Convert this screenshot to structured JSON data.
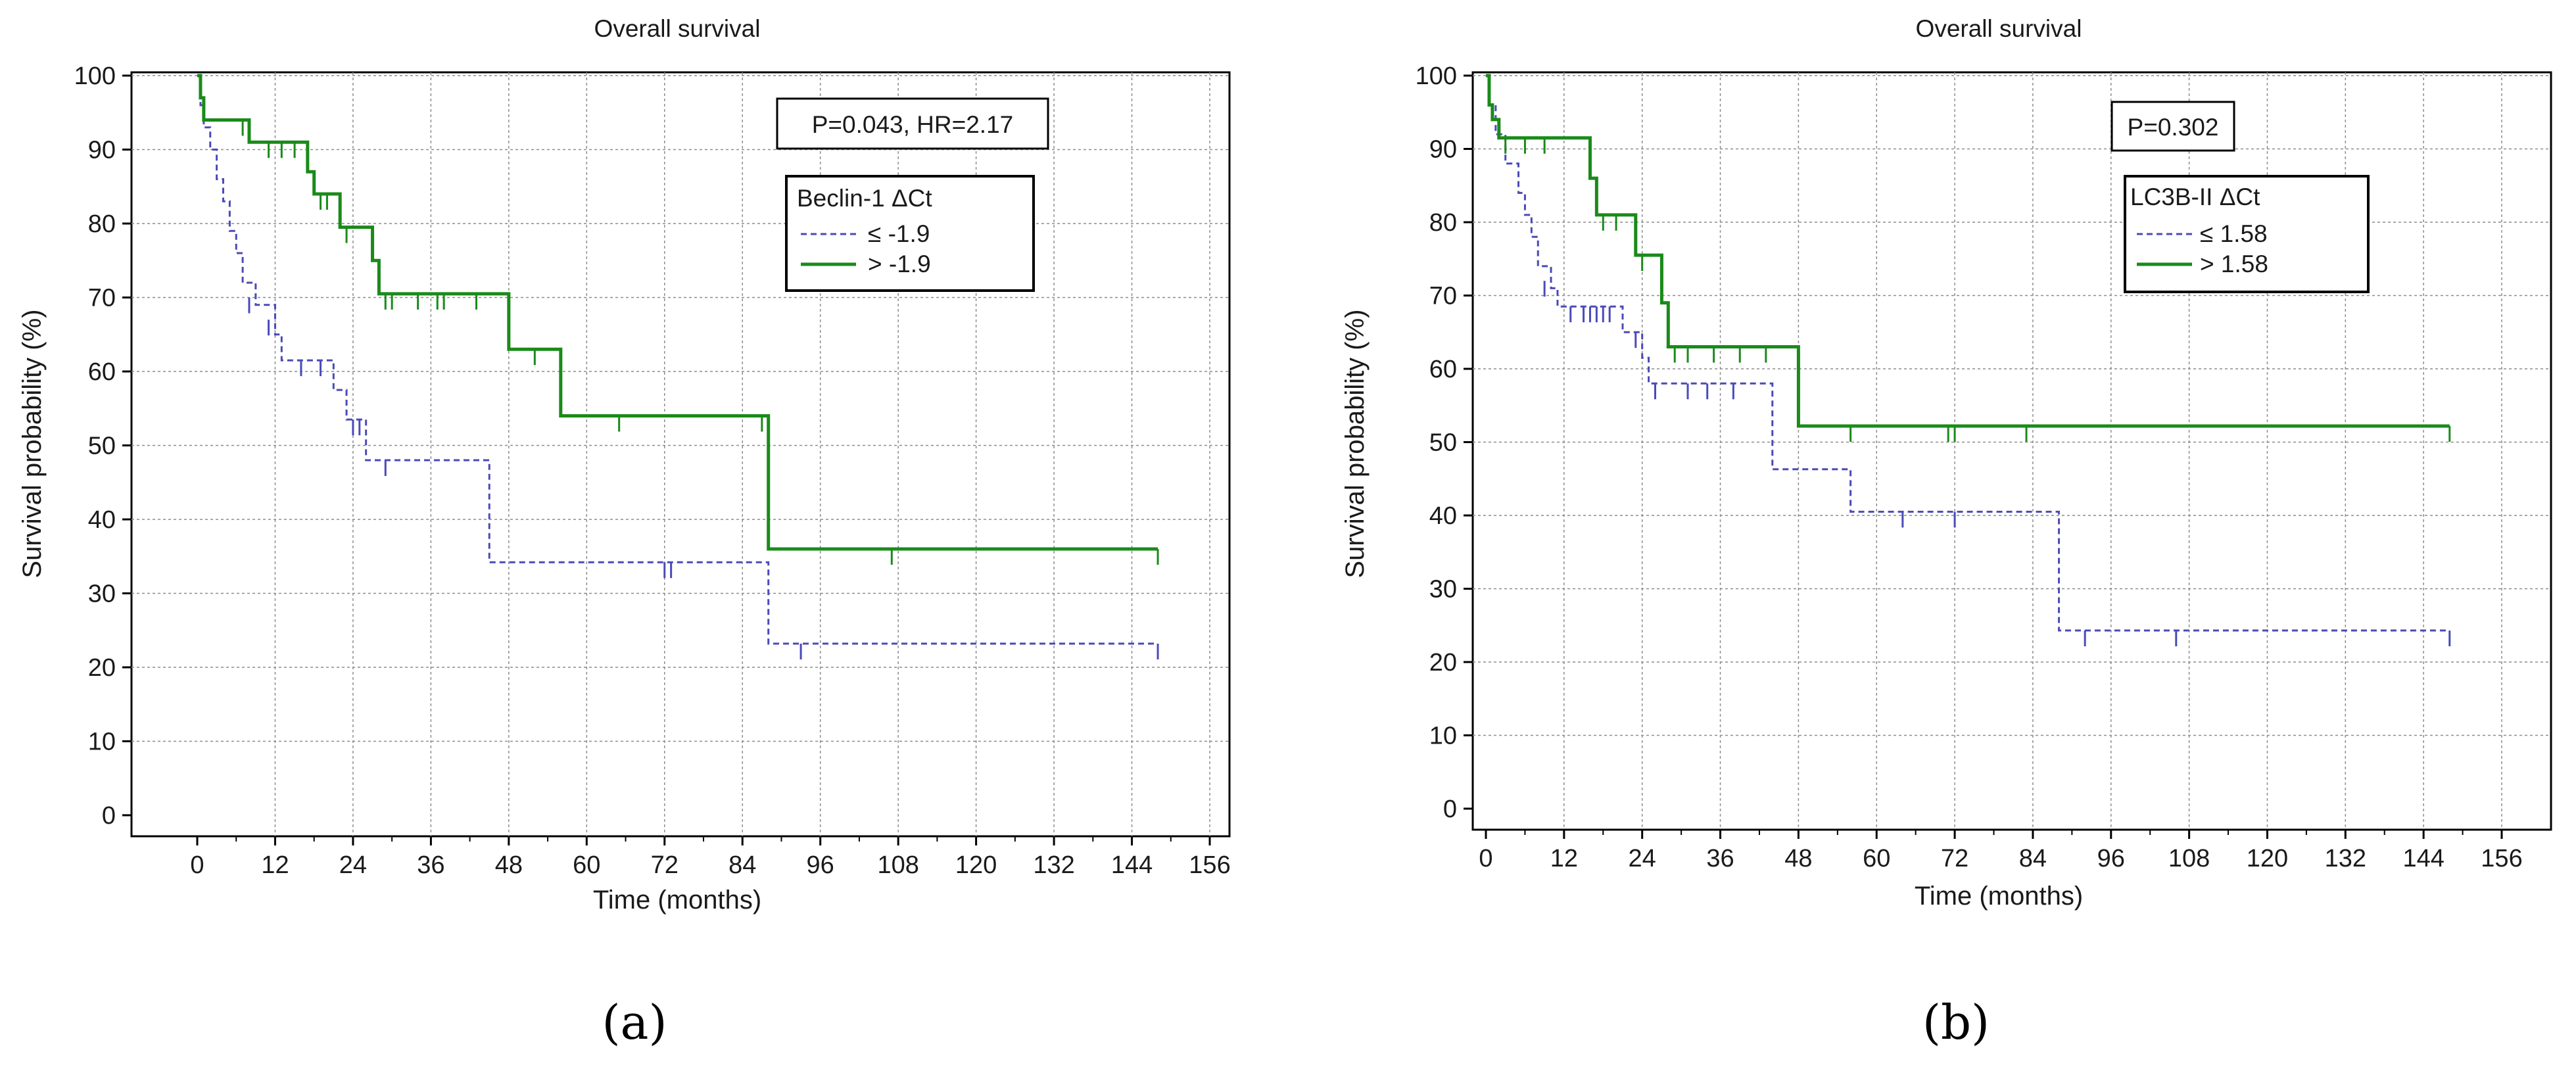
{
  "colors": {
    "low": "#4a4ab8",
    "high": "#1a8a1a",
    "grid": "#8c8c8c",
    "axis": "#000000"
  },
  "chart_data": [
    {
      "type": "line",
      "panel_label": "(a)",
      "title": "Overall survival",
      "xlabel": "Time (months)",
      "ylabel": "Survival probability (%)",
      "xlim": [
        0,
        156
      ],
      "ylim": [
        0,
        100
      ],
      "xticks": [
        "0",
        "12",
        "24",
        "36",
        "48",
        "60",
        "72",
        "84",
        "96",
        "108",
        "120",
        "132",
        "144",
        "156"
      ],
      "yticks": [
        "0",
        "10",
        "20",
        "30",
        "40",
        "50",
        "60",
        "70",
        "80",
        "90",
        "100"
      ],
      "stat_text": "P=0.043, HR=2.17",
      "legend_title": "Beclin-1 ΔCt",
      "grid": true,
      "series": [
        {
          "name": "≤ -1.9",
          "style": "dashed",
          "points": [
            [
              0,
              100
            ],
            [
              0.5,
              96
            ],
            [
              1,
              93
            ],
            [
              2,
              90
            ],
            [
              3,
              86
            ],
            [
              4,
              83
            ],
            [
              5,
              79
            ],
            [
              6,
              76
            ],
            [
              7,
              72
            ],
            [
              9,
              69
            ],
            [
              12,
              65
            ],
            [
              13,
              61.5
            ],
            [
              21,
              57.5
            ],
            [
              23,
              53.5
            ],
            [
              26,
              48
            ],
            [
              45,
              34.2
            ],
            [
              88,
              23.2
            ],
            [
              148,
              23.2
            ]
          ],
          "censored": [
            [
              8,
              70
            ],
            [
              11,
              67
            ],
            [
              16,
              61.5
            ],
            [
              19,
              61.5
            ],
            [
              24,
              53.5
            ],
            [
              25,
              53.5
            ],
            [
              29,
              48
            ],
            [
              72,
              34.2
            ],
            [
              73,
              34.2
            ],
            [
              93,
              23.2
            ],
            [
              148,
              23.2
            ]
          ]
        },
        {
          "name": "> -1.9",
          "style": "solid",
          "points": [
            [
              0,
              100
            ],
            [
              0.5,
              97
            ],
            [
              1,
              94
            ],
            [
              8,
              91
            ],
            [
              17,
              87
            ],
            [
              18,
              84
            ],
            [
              22,
              79.5
            ],
            [
              27,
              75
            ],
            [
              28,
              70.5
            ],
            [
              48,
              63
            ],
            [
              56,
              54
            ],
            [
              88,
              36
            ],
            [
              148,
              36
            ]
          ],
          "censored": [
            [
              7,
              94
            ],
            [
              11,
              91
            ],
            [
              13,
              91
            ],
            [
              15,
              91
            ],
            [
              19,
              84
            ],
            [
              20,
              84
            ],
            [
              23,
              79.5
            ],
            [
              29,
              70.5
            ],
            [
              30,
              70.5
            ],
            [
              34,
              70.5
            ],
            [
              37,
              70.5
            ],
            [
              38,
              70.5
            ],
            [
              43,
              70.5
            ],
            [
              52,
              63
            ],
            [
              65,
              54
            ],
            [
              87,
              54
            ],
            [
              107,
              36
            ],
            [
              148,
              36
            ]
          ]
        }
      ]
    },
    {
      "type": "line",
      "panel_label": "(b)",
      "title": "Overall survival",
      "xlabel": "Time (months)",
      "ylabel": "Survival probability (%)",
      "xlim": [
        0,
        156
      ],
      "ylim": [
        0,
        100
      ],
      "xticks": [
        "0",
        "12",
        "24",
        "36",
        "48",
        "60",
        "72",
        "84",
        "96",
        "108",
        "120",
        "132",
        "144",
        "156"
      ],
      "yticks": [
        "0",
        "10",
        "20",
        "30",
        "40",
        "50",
        "60",
        "70",
        "80",
        "90",
        "100"
      ],
      "stat_text": "P=0.302",
      "legend_title": "LC3B-II ΔCt",
      "grid": true,
      "series": [
        {
          "name": "≤ 1.58",
          "style": "dashed",
          "points": [
            [
              0,
              100
            ],
            [
              0.5,
              96
            ],
            [
              1.5,
              92
            ],
            [
              3,
              88
            ],
            [
              5,
              84
            ],
            [
              6,
              81
            ],
            [
              7,
              78
            ],
            [
              8,
              74
            ],
            [
              10,
              71
            ],
            [
              11,
              68.5
            ],
            [
              21,
              65
            ],
            [
              24,
              61.5
            ],
            [
              25,
              58
            ],
            [
              44,
              46.3
            ],
            [
              56,
              40.5
            ],
            [
              88,
              24.3
            ],
            [
              148,
              24.3
            ]
          ],
          "censored": [
            [
              9,
              72
            ],
            [
              13,
              68.5
            ],
            [
              15,
              68.5
            ],
            [
              16,
              68.5
            ],
            [
              17,
              68.5
            ],
            [
              18,
              68.5
            ],
            [
              19,
              68.5
            ],
            [
              23,
              65
            ],
            [
              26,
              58
            ],
            [
              31,
              58
            ],
            [
              34,
              58
            ],
            [
              38,
              58
            ],
            [
              64,
              40.5
            ],
            [
              72,
              40.5
            ],
            [
              92,
              24.3
            ],
            [
              106,
              24.3
            ],
            [
              148,
              24.3
            ]
          ]
        },
        {
          "name": "> 1.58",
          "style": "solid",
          "points": [
            [
              0,
              100
            ],
            [
              0.5,
              96
            ],
            [
              1,
              94
            ],
            [
              2,
              91.5
            ],
            [
              16,
              86
            ],
            [
              17,
              81
            ],
            [
              23,
              75.5
            ],
            [
              27,
              69
            ],
            [
              28,
              63
            ],
            [
              48,
              52.2
            ],
            [
              148,
              52.2
            ]
          ],
          "censored": [
            [
              3,
              91.5
            ],
            [
              6,
              91.5
            ],
            [
              9,
              91.5
            ],
            [
              18,
              81
            ],
            [
              20,
              81
            ],
            [
              24,
              75.5
            ],
            [
              29,
              63
            ],
            [
              31,
              63
            ],
            [
              35,
              63
            ],
            [
              39,
              63
            ],
            [
              43,
              63
            ],
            [
              56,
              52.2
            ],
            [
              71,
              52.2
            ],
            [
              72,
              52.2
            ],
            [
              83,
              52.2
            ],
            [
              148,
              52.2
            ]
          ]
        }
      ]
    }
  ]
}
